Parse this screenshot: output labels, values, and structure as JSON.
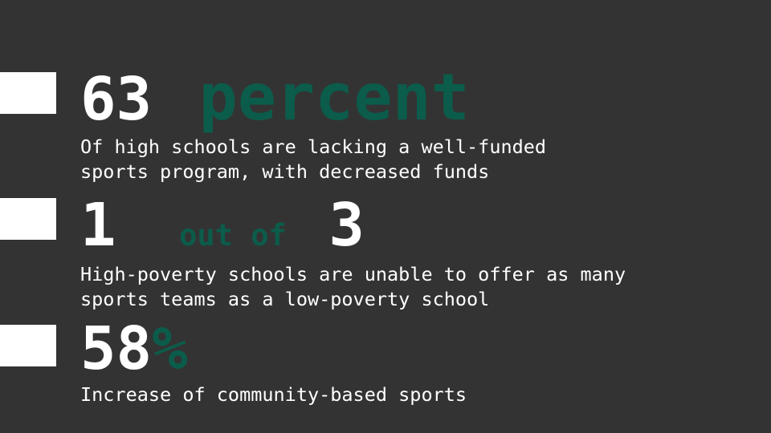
{
  "stats": [
    {
      "number": "63",
      "accent_word": "percent",
      "lines": [
        "Of high schools are lacking a well-funded",
        "sports program, with decreased funds"
      ]
    },
    {
      "number_before": "1",
      "accent_word": "out of",
      "number_after": "3",
      "lines": [
        "High-poverty schools are unable to offer as many",
        "sports teams as a low-poverty school"
      ]
    },
    {
      "number": "58",
      "accent_word": "%",
      "lines": [
        "Increase of community-based sports"
      ]
    }
  ],
  "colors": {
    "background": "#333333",
    "accent": "#0b5c4a",
    "text": "#ffffff",
    "marker": "#ffffff"
  }
}
